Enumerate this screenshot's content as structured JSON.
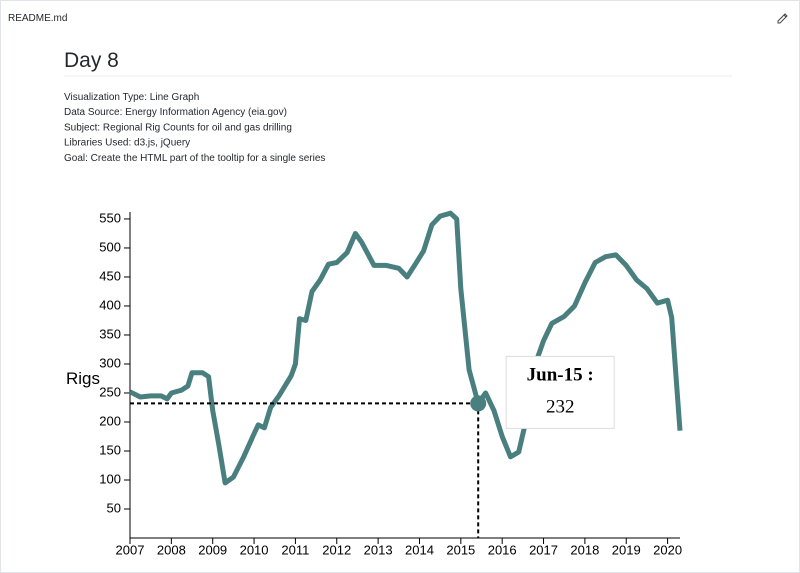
{
  "header": {
    "filename": "README.md"
  },
  "readme": {
    "title": "Day 8",
    "lines": [
      "Visualization Type: Line Graph",
      "Data Source: Energy Information Agency (eia.gov)",
      "Subject: Regional Rig Counts for oil and gas drilling",
      "Libraries Used: d3.js, jQuery",
      "Goal: Create the HTML part of the tooltip for a single series"
    ]
  },
  "chart_data": {
    "type": "line",
    "ylabel": "Rigs",
    "color": "#4a7f7f",
    "x": [
      2007.0,
      2007.25,
      2007.5,
      2007.75,
      2007.9,
      2008.0,
      2008.25,
      2008.4,
      2008.5,
      2008.75,
      2008.9,
      2009.0,
      2009.15,
      2009.3,
      2009.5,
      2009.75,
      2010.0,
      2010.1,
      2010.25,
      2010.4,
      2010.6,
      2010.9,
      2011.0,
      2011.1,
      2011.25,
      2011.4,
      2011.6,
      2011.8,
      2012.0,
      2012.25,
      2012.45,
      2012.6,
      2012.9,
      2013.2,
      2013.5,
      2013.7,
      2013.9,
      2014.1,
      2014.3,
      2014.5,
      2014.75,
      2014.9,
      2015.0,
      2015.2,
      2015.42,
      2015.6,
      2015.8,
      2016.0,
      2016.2,
      2016.4,
      2016.6,
      2016.8,
      2017.0,
      2017.2,
      2017.5,
      2017.75,
      2018.0,
      2018.25,
      2018.5,
      2018.75,
      2019.0,
      2019.25,
      2019.5,
      2019.75,
      2020.0,
      2020.1,
      2020.3
    ],
    "values": [
      252,
      243,
      245,
      245,
      240,
      250,
      255,
      262,
      285,
      285,
      278,
      220,
      160,
      95,
      105,
      140,
      180,
      195,
      190,
      225,
      245,
      280,
      300,
      378,
      375,
      425,
      445,
      472,
      475,
      492,
      525,
      510,
      470,
      470,
      465,
      450,
      472,
      495,
      540,
      555,
      560,
      550,
      430,
      290,
      232,
      250,
      220,
      175,
      140,
      148,
      210,
      300,
      340,
      370,
      382,
      400,
      440,
      475,
      485,
      488,
      470,
      445,
      430,
      405,
      410,
      380,
      185
    ],
    "xlim": [
      2007,
      2020.3
    ],
    "xticks": [
      2007,
      2008,
      2009,
      2010,
      2011,
      2012,
      2013,
      2014,
      2015,
      2016,
      2017,
      2018,
      2019,
      2020
    ],
    "ylim": [
      0,
      562
    ],
    "yticks": [
      50,
      100,
      150,
      200,
      250,
      300,
      350,
      400,
      450,
      500,
      550
    ],
    "tooltip": {
      "label": "Jun-15 :",
      "value": 232
    }
  }
}
